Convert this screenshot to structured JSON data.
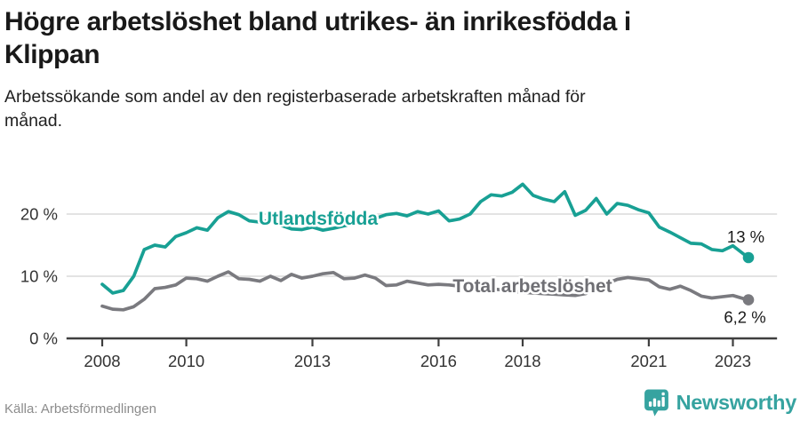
{
  "header": {
    "title_lines": [
      "Högre arbetslöshet bland utrikes- än inrikesfödda i",
      "Klippan"
    ],
    "subtitle_lines": [
      "Arbetssökande som andel av den registerbaserade arbetskraften månad för",
      "månad."
    ]
  },
  "footer": {
    "source": "Källa: Arbetsförmedlingen",
    "brand": "Newsworthy"
  },
  "colors": {
    "teal_line": "#18A094",
    "gray_line": "#7A7A7F",
    "gray_label": "#6F6F74",
    "axis": "#3F3F3F",
    "grid": "#DADADA",
    "tick_text": "#333333",
    "end_label_text": "#1A1A1A",
    "logo_teal": "#36A3A0"
  },
  "chart_data": {
    "type": "line",
    "title": "Högre arbetslöshet bland utrikes- än inrikesfödda i Klippan",
    "subtitle": "Arbetssökande som andel av den registerbaserade arbetskraften månad för månad.",
    "x_unit": "year (monthly series, values estimated quarterly)",
    "y_unit": "percent of registered labour force",
    "x": [
      2008,
      2008.25,
      2008.5,
      2008.75,
      2009,
      2009.25,
      2009.5,
      2009.75,
      2010,
      2010.25,
      2010.5,
      2010.75,
      2011,
      2011.25,
      2011.5,
      2011.75,
      2012,
      2012.25,
      2012.5,
      2012.75,
      2013,
      2013.25,
      2013.5,
      2013.75,
      2014,
      2014.25,
      2014.5,
      2014.75,
      2015,
      2015.25,
      2015.5,
      2015.75,
      2016,
      2016.25,
      2016.5,
      2016.75,
      2017,
      2017.25,
      2017.5,
      2017.75,
      2018,
      2018.25,
      2018.5,
      2018.75,
      2019,
      2019.25,
      2019.5,
      2019.75,
      2020,
      2020.25,
      2020.5,
      2020.75,
      2021,
      2021.25,
      2021.5,
      2021.75,
      2022,
      2022.25,
      2022.5,
      2022.75,
      2023,
      2023.25,
      2023.37
    ],
    "series": [
      {
        "name": "Utlandsfödda",
        "color": "#18A094",
        "end_label": "13 %",
        "end_value": 13,
        "values": [
          8.7,
          7.3,
          7.7,
          10.0,
          14.3,
          15.0,
          14.7,
          16.4,
          17.0,
          17.8,
          17.4,
          19.4,
          20.4,
          19.9,
          18.9,
          18.7,
          19.0,
          18.2,
          17.6,
          17.5,
          17.9,
          17.4,
          17.7,
          18.1,
          18.5,
          18.9,
          19.3,
          19.9,
          20.1,
          19.7,
          20.4,
          20.0,
          20.5,
          18.9,
          19.2,
          20.0,
          22.0,
          23.1,
          22.9,
          23.5,
          24.8,
          23.0,
          22.4,
          22.0,
          23.6,
          19.8,
          20.6,
          22.5,
          20.0,
          21.7,
          21.4,
          20.7,
          20.2,
          17.9,
          17.1,
          16.2,
          15.3,
          15.2,
          14.3,
          14.1,
          14.9,
          13.6,
          13.0
        ]
      },
      {
        "name": "Total arbetslöshet",
        "color": "#7A7A7F",
        "end_label": "6,2 %",
        "end_value": 6.2,
        "values": [
          5.2,
          4.7,
          4.6,
          5.1,
          6.3,
          8.0,
          8.2,
          8.6,
          9.7,
          9.6,
          9.2,
          10.0,
          10.7,
          9.6,
          9.5,
          9.2,
          10.0,
          9.3,
          10.3,
          9.7,
          10.0,
          10.4,
          10.6,
          9.6,
          9.7,
          10.2,
          9.7,
          8.5,
          8.6,
          9.2,
          8.9,
          8.6,
          8.7,
          8.6,
          8.4,
          8.3,
          8.2,
          8.0,
          7.8,
          7.6,
          7.4,
          7.3,
          7.2,
          7.1,
          7.0,
          6.9,
          7.2,
          8.0,
          8.8,
          9.5,
          9.8,
          9.6,
          9.4,
          8.3,
          7.9,
          8.4,
          7.7,
          6.8,
          6.5,
          6.7,
          6.9,
          6.4,
          6.2
        ]
      }
    ],
    "xticks": {
      "values": [
        2008,
        2010,
        2013,
        2016,
        2018,
        2021,
        2023
      ],
      "labels": [
        "2008",
        "2010",
        "2013",
        "2016",
        "2018",
        "2021",
        "2023"
      ]
    },
    "yticks": {
      "values": [
        0,
        10,
        20
      ],
      "labels": [
        "0 %",
        "10 %",
        "20 %"
      ]
    },
    "xlim": [
      2007.15,
      2024.05
    ],
    "ylim": [
      0,
      27
    ],
    "grid": "horizontal",
    "legend": "inline-labels"
  }
}
